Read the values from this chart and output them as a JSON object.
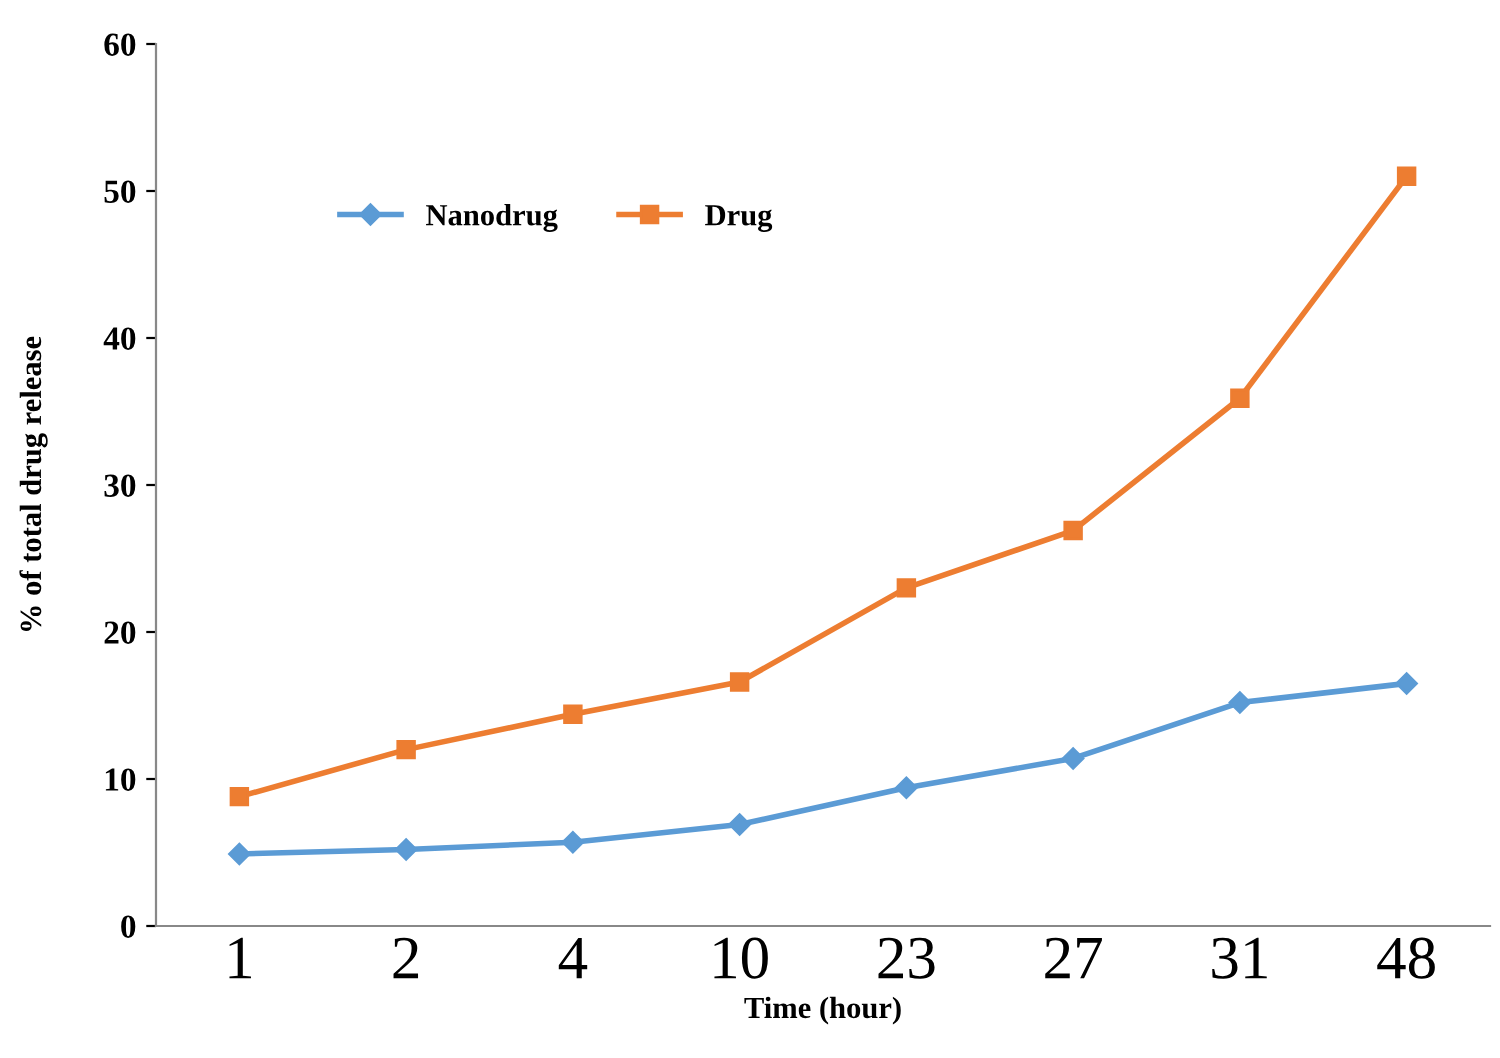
{
  "chart_data": {
    "type": "line",
    "xlabel": "Time (hour)",
    "ylabel": "% of total drug release",
    "categories": [
      "1",
      "2",
      "4",
      "10",
      "23",
      "27",
      "31",
      "48"
    ],
    "series": [
      {
        "name": "Nanodrug",
        "color": "#5b9bd5",
        "marker": "diamond",
        "values": [
          4.9,
          5.2,
          5.7,
          6.9,
          9.4,
          11.4,
          15.2,
          16.5
        ]
      },
      {
        "name": "Drug",
        "color": "#ed7d31",
        "marker": "square",
        "values": [
          8.8,
          12,
          14.4,
          16.6,
          23,
          26.9,
          35.9,
          51
        ]
      }
    ],
    "ylim": [
      0,
      60
    ],
    "yticks": [
      0,
      10,
      20,
      30,
      40,
      50,
      60
    ],
    "grid": false,
    "legend": "top"
  }
}
